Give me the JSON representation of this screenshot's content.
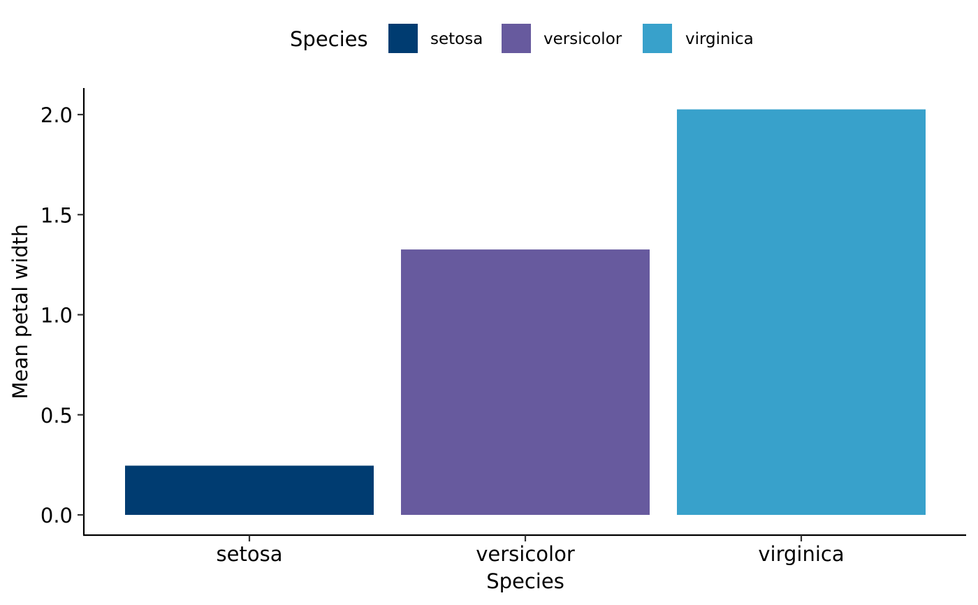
{
  "chart_data": {
    "type": "bar",
    "categories": [
      "setosa",
      "versicolor",
      "virginica"
    ],
    "values": [
      0.246,
      1.326,
      2.026
    ],
    "colors": [
      "#003C71",
      "#675A9E",
      "#38A1CB"
    ],
    "xlabel": "Species",
    "ylabel": "Mean petal width",
    "ylim": [
      -0.1,
      2.126
    ],
    "yticks": [
      0.0,
      0.5,
      1.0,
      1.5,
      2.0
    ],
    "ytick_labels": [
      "0.0",
      "0.5",
      "1.0",
      "1.5",
      "2.0"
    ],
    "grid": false,
    "legend": {
      "title": "Species",
      "position": "top",
      "entries": [
        "setosa",
        "versicolor",
        "virginica"
      ]
    }
  }
}
